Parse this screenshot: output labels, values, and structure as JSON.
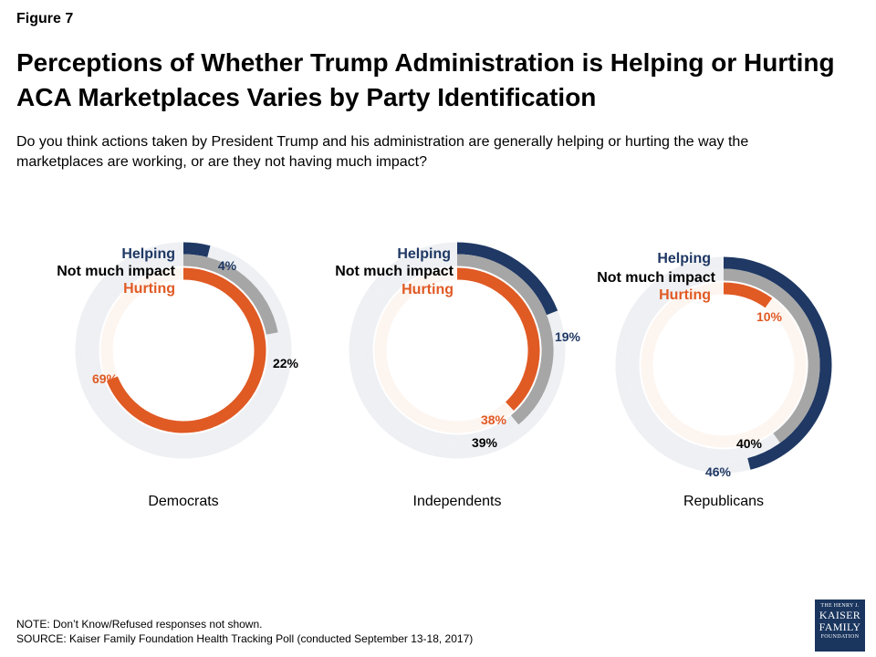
{
  "figure_label": "Figure 7",
  "title": "Perceptions of Whether Trump Administration is Helping or Hurting ACA Marketplaces Varies by Party Identification",
  "subtitle": "Do you think actions taken by President Trump and his administration are generally helping or hurting the way the marketplaces are working, or are they not having much impact?",
  "note": "NOTE: Don’t Know/Refused responses not shown.",
  "source": "SOURCE: Kaiser Family Foundation Health Tracking Poll (conducted September 13-18, 2017)",
  "logo": {
    "line1": "THE HENRY J.",
    "line2": "KAISER",
    "line3": "FAMILY",
    "line4": "FOUNDATION"
  },
  "colors": {
    "helping": "#1f3864",
    "not_much_impact": "#a6a6a6",
    "hurting": "#e05a24",
    "track": "#eef0f3",
    "inner_track": "#fdf5f0"
  },
  "chart_data": {
    "type": "radial-bar",
    "categories": [
      "Democrats",
      "Independents",
      "Republicans"
    ],
    "series": [
      {
        "name": "Helping",
        "values": [
          4,
          19,
          46
        ]
      },
      {
        "name": "Not much impact",
        "values": [
          22,
          39,
          40
        ]
      },
      {
        "name": "Hurting",
        "values": [
          69,
          38,
          10
        ]
      }
    ],
    "unit": "%",
    "max": 100
  }
}
